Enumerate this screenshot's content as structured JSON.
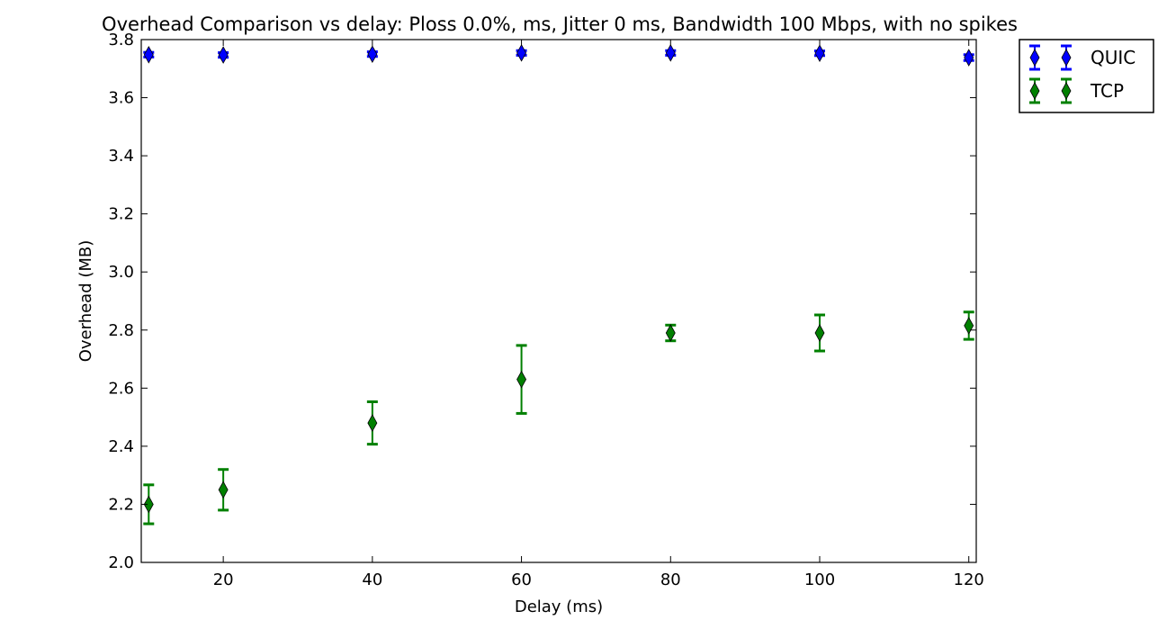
{
  "chart_data": {
    "type": "scatter",
    "title": "Overhead Comparison vs delay: Ploss 0.0%, ms, Jitter 0 ms, Bandwidth 100 Mbps, with no spikes",
    "xlabel": "Delay (ms)",
    "ylabel": "Overhead (MB)",
    "xlim": [
      9,
      121
    ],
    "ylim": [
      2.0,
      3.8
    ],
    "xticks": [
      20,
      40,
      60,
      80,
      100,
      120
    ],
    "yticks": [
      2.0,
      2.2,
      2.4,
      2.6,
      2.8,
      3.0,
      3.2,
      3.4,
      3.6,
      3.8
    ],
    "xtick_labels": [
      "20",
      "40",
      "60",
      "80",
      "100",
      "120"
    ],
    "ytick_labels": [
      "2.0",
      "2.2",
      "2.4",
      "2.6",
      "2.8",
      "3.0",
      "3.2",
      "3.4",
      "3.6",
      "3.8"
    ],
    "grid": false,
    "legend_position": "outside-top-right",
    "marker": "thin-diamond",
    "series": [
      {
        "name": "QUIC",
        "color": "#0000ff",
        "x": [
          10,
          20,
          40,
          60,
          80,
          100,
          120
        ],
        "y": [
          3.748,
          3.747,
          3.75,
          3.754,
          3.754,
          3.753,
          3.738
        ],
        "err": [
          0.008,
          0.008,
          0.008,
          0.008,
          0.008,
          0.008,
          0.01
        ]
      },
      {
        "name": "TCP",
        "color": "#008000",
        "x": [
          10,
          20,
          40,
          60,
          80,
          100,
          120
        ],
        "y": [
          2.2,
          2.25,
          2.48,
          2.63,
          2.79,
          2.79,
          2.815
        ],
        "err": [
          0.067,
          0.07,
          0.073,
          0.117,
          0.027,
          0.062,
          0.047
        ]
      }
    ]
  }
}
